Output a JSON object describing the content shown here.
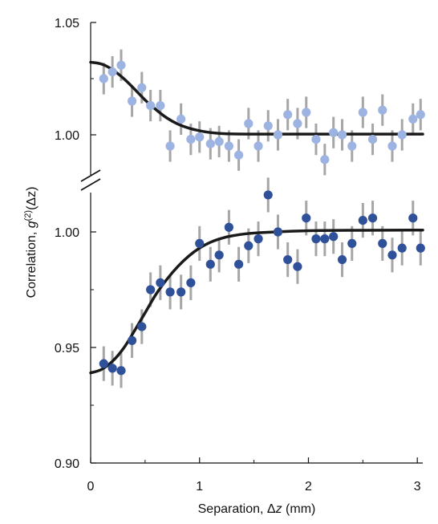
{
  "chart_data": {
    "type": "scatter",
    "xlabel": "Separation, Δz (mm)",
    "ylabel": "Correlation, g(2)(Δz)",
    "ylabel_parts": {
      "prefix": "Correlation, ",
      "g": "g",
      "sup": "(2)",
      "arg": "(Δz)"
    },
    "xlabel_parts": {
      "prefix": "Separation, ",
      "delta": "Δ",
      "z": "z",
      "unit": " (mm)"
    },
    "xlim": [
      0,
      3.05
    ],
    "xticks": [
      0,
      1,
      2,
      3
    ],
    "xtick_labels": [
      "0",
      "1",
      "2",
      "3"
    ],
    "axis_break": true,
    "panels": [
      {
        "name": "upper",
        "ylim": [
          0.985,
          1.05
        ],
        "yticks": [
          1.0,
          1.05
        ],
        "ytick_labels": [
          "1.00",
          "1.05"
        ],
        "minor_yticks": [
          1.025
        ],
        "color": "#9db3e2",
        "x": [
          0.12,
          0.2,
          0.28,
          0.38,
          0.47,
          0.55,
          0.64,
          0.73,
          0.83,
          0.92,
          1.0,
          1.1,
          1.18,
          1.27,
          1.36,
          1.45,
          1.54,
          1.63,
          1.72,
          1.81,
          1.9,
          1.98,
          2.07,
          2.15,
          2.23,
          2.31,
          2.4,
          2.5,
          2.59,
          2.68,
          2.77,
          2.86,
          2.96,
          3.03
        ],
        "y": [
          1.025,
          1.028,
          1.031,
          1.015,
          1.021,
          1.013,
          1.013,
          0.995,
          1.007,
          0.998,
          0.999,
          0.996,
          0.997,
          0.995,
          0.991,
          1.005,
          0.995,
          1.004,
          1.0,
          1.009,
          1.005,
          1.01,
          0.998,
          0.989,
          1.001,
          1.0,
          0.995,
          1.01,
          0.998,
          1.011,
          0.995,
          1.0,
          1.007,
          1.009
        ],
        "yerr": [
          0.007,
          0.007,
          0.007,
          0.007,
          0.007,
          0.007,
          0.007,
          0.007,
          0.007,
          0.007,
          0.007,
          0.007,
          0.007,
          0.007,
          0.007,
          0.007,
          0.007,
          0.007,
          0.007,
          0.007,
          0.007,
          0.007,
          0.007,
          0.007,
          0.007,
          0.007,
          0.007,
          0.007,
          0.007,
          0.007,
          0.007,
          0.007,
          0.007,
          0.007
        ],
        "fit": {
          "x": [
            0,
            0.1,
            0.2,
            0.3,
            0.4,
            0.5,
            0.6,
            0.7,
            0.8,
            0.9,
            1.0,
            1.1,
            1.2,
            1.3,
            1.5,
            2.0,
            2.5,
            3.05
          ],
          "y": [
            1.0323,
            1.0315,
            1.029,
            1.0252,
            1.0205,
            1.0155,
            1.0112,
            1.0075,
            1.0048,
            1.003,
            1.0018,
            1.001,
            1.0006,
            1.0004,
            1.0003,
            1.0003,
            1.0003,
            1.0003
          ]
        }
      },
      {
        "name": "lower",
        "ylim": [
          0.9,
          1.02
        ],
        "yticks": [
          0.9,
          0.95,
          1.0
        ],
        "ytick_labels": [
          "0.90",
          "0.95",
          "1.00"
        ],
        "minor_yticks": [
          0.925,
          0.975
        ],
        "color": "#2f519a",
        "x": [
          0.12,
          0.2,
          0.28,
          0.38,
          0.47,
          0.55,
          0.64,
          0.73,
          0.83,
          0.92,
          1.0,
          1.1,
          1.18,
          1.27,
          1.36,
          1.45,
          1.54,
          1.63,
          1.72,
          1.81,
          1.9,
          1.98,
          2.07,
          2.15,
          2.23,
          2.31,
          2.4,
          2.5,
          2.59,
          2.68,
          2.77,
          2.86,
          2.96,
          3.03
        ],
        "y": [
          0.943,
          0.941,
          0.94,
          0.953,
          0.959,
          0.975,
          0.978,
          0.974,
          0.974,
          0.978,
          0.995,
          0.986,
          0.99,
          1.002,
          0.986,
          0.994,
          0.997,
          1.016,
          1.0,
          0.988,
          0.985,
          1.006,
          0.997,
          0.997,
          0.998,
          0.988,
          0.995,
          1.005,
          1.006,
          0.995,
          0.99,
          0.993,
          1.006,
          0.993
        ],
        "yerr": [
          0.0075,
          0.0075,
          0.0075,
          0.0075,
          0.0075,
          0.0075,
          0.0075,
          0.0075,
          0.0075,
          0.0075,
          0.0075,
          0.0075,
          0.0075,
          0.0075,
          0.0075,
          0.0075,
          0.0075,
          0.0075,
          0.0075,
          0.0075,
          0.0075,
          0.0075,
          0.0075,
          0.0075,
          0.0075,
          0.0075,
          0.0075,
          0.0075,
          0.0075,
          0.0075,
          0.0075,
          0.0075,
          0.0075,
          0.0075
        ],
        "fit": {
          "x": [
            0,
            0.1,
            0.2,
            0.3,
            0.4,
            0.5,
            0.6,
            0.7,
            0.8,
            0.9,
            1.0,
            1.1,
            1.2,
            1.3,
            1.5,
            2.0,
            2.5,
            3.05
          ],
          "y": [
            0.939,
            0.9405,
            0.944,
            0.9495,
            0.957,
            0.965,
            0.973,
            0.9795,
            0.985,
            0.9895,
            0.993,
            0.9955,
            0.9972,
            0.9983,
            0.9995,
            1.0005,
            1.0007,
            1.0008
          ]
        }
      }
    ],
    "grid": false,
    "legend": "none",
    "colors": {
      "fit_line": "#1a1a1a",
      "error_bar": "#a6a6a6",
      "axis": "#111111"
    }
  }
}
